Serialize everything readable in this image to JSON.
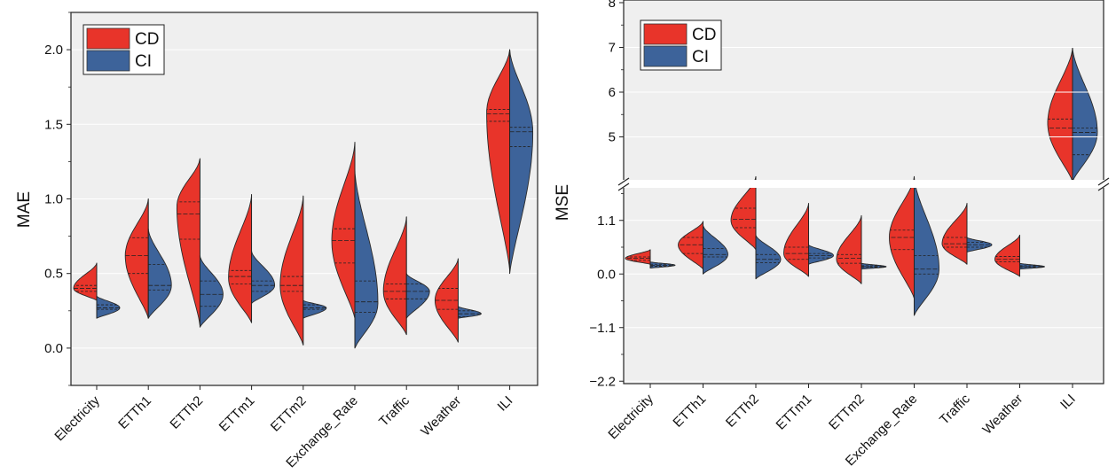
{
  "chart_data": [
    {
      "type": "violin",
      "ylabel": "MAE",
      "ylim": [
        -0.25,
        2.25
      ],
      "y_ticks": [
        "0.0",
        "0.5",
        "1.0",
        "1.5",
        "2.0"
      ],
      "grid": true,
      "legend_position": "top-left",
      "categories": [
        "Electricity",
        "ETTh1",
        "ETTh2",
        "ETTm1",
        "ETTm2",
        "Exchange_Rate",
        "Traffic",
        "Weather",
        "ILI"
      ],
      "series": [
        {
          "name": "CD",
          "color": "#e8342a",
          "side": "left",
          "violins": [
            {
              "min": 0.32,
              "max": 0.57,
              "mode": 0.4,
              "q1": 0.38,
              "median": 0.4,
              "q3": 0.42
            },
            {
              "min": 0.2,
              "max": 1.0,
              "mode": 0.62,
              "q1": 0.5,
              "median": 0.62,
              "q3": 0.74
            },
            {
              "min": 0.15,
              "max": 1.27,
              "mode": 0.95,
              "q1": 0.73,
              "median": 0.9,
              "q3": 0.98
            },
            {
              "min": 0.17,
              "max": 1.03,
              "mode": 0.47,
              "q1": 0.43,
              "median": 0.48,
              "q3": 0.52
            },
            {
              "min": 0.02,
              "max": 1.02,
              "mode": 0.42,
              "q1": 0.38,
              "median": 0.42,
              "q3": 0.48
            },
            {
              "min": 0.2,
              "max": 1.38,
              "mode": 0.72,
              "q1": 0.57,
              "median": 0.72,
              "q3": 0.8
            },
            {
              "min": 0.09,
              "max": 0.88,
              "mode": 0.38,
              "q1": 0.33,
              "median": 0.38,
              "q3": 0.43
            },
            {
              "min": 0.04,
              "max": 0.6,
              "mode": 0.32,
              "q1": 0.26,
              "median": 0.32,
              "q3": 0.4
            },
            {
              "min": 0.52,
              "max": 2.0,
              "mode": 1.58,
              "q1": 1.52,
              "median": 1.57,
              "q3": 1.6
            }
          ]
        },
        {
          "name": "CI",
          "color": "#3d639a",
          "side": "right",
          "violins": [
            {
              "min": 0.2,
              "max": 0.35,
              "mode": 0.27,
              "q1": 0.26,
              "median": 0.27,
              "q3": 0.29
            },
            {
              "min": 0.2,
              "max": 0.8,
              "mode": 0.42,
              "q1": 0.39,
              "median": 0.42,
              "q3": 0.56
            },
            {
              "min": 0.14,
              "max": 0.62,
              "mode": 0.36,
              "q1": 0.28,
              "median": 0.36,
              "q3": 0.45
            },
            {
              "min": 0.3,
              "max": 0.65,
              "mode": 0.42,
              "q1": 0.38,
              "median": 0.42,
              "q3": 0.45
            },
            {
              "min": 0.2,
              "max": 0.32,
              "mode": 0.27,
              "q1": 0.26,
              "median": 0.27,
              "q3": 0.29
            },
            {
              "min": 0.0,
              "max": 1.2,
              "mode": 0.3,
              "q1": 0.24,
              "median": 0.31,
              "q3": 0.45
            },
            {
              "min": 0.2,
              "max": 0.5,
              "mode": 0.38,
              "q1": 0.33,
              "median": 0.38,
              "q3": 0.43
            },
            {
              "min": 0.2,
              "max": 0.28,
              "mode": 0.23,
              "q1": 0.21,
              "median": 0.23,
              "q3": 0.25
            },
            {
              "min": 0.5,
              "max": 2.0,
              "mode": 1.45,
              "q1": 1.35,
              "median": 1.45,
              "q3": 1.48
            }
          ]
        }
      ]
    },
    {
      "type": "violin",
      "ylabel": "MSE",
      "axis_break": true,
      "lower_ylim": [
        -2.25,
        1.75
      ],
      "upper_ylim": [
        4.0,
        8.0
      ],
      "lower_y_ticks": [
        "−2.2",
        "−1.1",
        "0.0",
        "1.1"
      ],
      "upper_y_ticks": [
        "5",
        "6",
        "7",
        "8"
      ],
      "grid": true,
      "legend_position": "top-left",
      "categories": [
        "Electricity",
        "ETTh1",
        "ETTh2",
        "ETTm1",
        "ETTm2",
        "Exchange_Rate",
        "Traffic",
        "Weather",
        "ILI"
      ],
      "series": [
        {
          "name": "CD",
          "color": "#e8342a",
          "side": "left",
          "violins": [
            {
              "min": 0.2,
              "max": 0.5,
              "mode": 0.32,
              "q1": 0.28,
              "median": 0.32,
              "q3": 0.35
            },
            {
              "min": 0.1,
              "max": 1.08,
              "mode": 0.6,
              "q1": 0.42,
              "median": 0.6,
              "q3": 0.75
            },
            {
              "min": 0.5,
              "max": 2.0,
              "mode": 1.1,
              "q1": 0.95,
              "median": 1.12,
              "q3": 1.35
            },
            {
              "min": -0.05,
              "max": 1.45,
              "mode": 0.42,
              "q1": 0.3,
              "median": 0.42,
              "q3": 0.55
            },
            {
              "min": -0.2,
              "max": 1.2,
              "mode": 0.3,
              "q1": 0.22,
              "median": 0.32,
              "q3": 0.4
            },
            {
              "min": -0.5,
              "max": 2.0,
              "mode": 0.75,
              "q1": 0.5,
              "median": 0.75,
              "q3": 0.9
            },
            {
              "min": 0.2,
              "max": 1.45,
              "mode": 0.62,
              "q1": 0.55,
              "median": 0.62,
              "q3": 0.75
            },
            {
              "min": -0.05,
              "max": 0.8,
              "mode": 0.3,
              "q1": 0.25,
              "median": 0.3,
              "q3": 0.36
            },
            {
              "min": 4.0,
              "max": 7.0,
              "mode": 5.3,
              "q1": 5.0,
              "median": 5.2,
              "q3": 5.4
            }
          ]
        },
        {
          "name": "CI",
          "color": "#3d639a",
          "side": "right",
          "violins": [
            {
              "min": 0.12,
              "max": 0.25,
              "mode": 0.18,
              "q1": 0.16,
              "median": 0.18,
              "q3": 0.2
            },
            {
              "min": 0.0,
              "max": 1.0,
              "mode": 0.4,
              "q1": 0.35,
              "median": 0.4,
              "q3": 0.52
            },
            {
              "min": -0.1,
              "max": 0.8,
              "mode": 0.3,
              "q1": 0.23,
              "median": 0.3,
              "q3": 0.4
            },
            {
              "min": 0.2,
              "max": 0.6,
              "mode": 0.38,
              "q1": 0.33,
              "median": 0.38,
              "q3": 0.42
            },
            {
              "min": 0.1,
              "max": 0.22,
              "mode": 0.15,
              "q1": 0.14,
              "median": 0.15,
              "q3": 0.17
            },
            {
              "min": -0.85,
              "max": 2.0,
              "mode": 0.1,
              "q1": 0.0,
              "median": 0.1,
              "q3": 0.38
            },
            {
              "min": 0.45,
              "max": 0.75,
              "mode": 0.6,
              "q1": 0.55,
              "median": 0.6,
              "q3": 0.65
            },
            {
              "min": 0.1,
              "max": 0.22,
              "mode": 0.15,
              "q1": 0.14,
              "median": 0.15,
              "q3": 0.17
            },
            {
              "min": 4.0,
              "max": 7.0,
              "mode": 5.1,
              "q1": 4.6,
              "median": 5.1,
              "q3": 5.2
            }
          ]
        }
      ]
    }
  ]
}
